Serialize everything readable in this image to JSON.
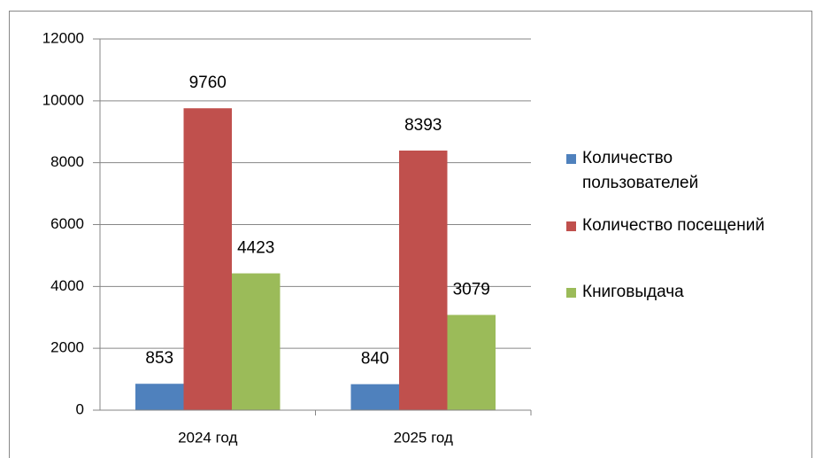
{
  "chart_data": {
    "type": "bar",
    "categories": [
      "2024 год",
      "2025 год"
    ],
    "series": [
      {
        "name": "Количество пользователей",
        "color": "#4f81bd",
        "values": [
          853,
          840
        ]
      },
      {
        "name": "Количество посещений",
        "color": "#c0504d",
        "values": [
          9760,
          8393
        ]
      },
      {
        "name": "Книговыдача",
        "color": "#9bbb59",
        "values": [
          4423,
          3079
        ]
      }
    ],
    "ylim": [
      0,
      12000
    ],
    "yticks": [
      0,
      2000,
      4000,
      6000,
      8000,
      10000,
      12000
    ],
    "grid": true,
    "legend": "right"
  }
}
